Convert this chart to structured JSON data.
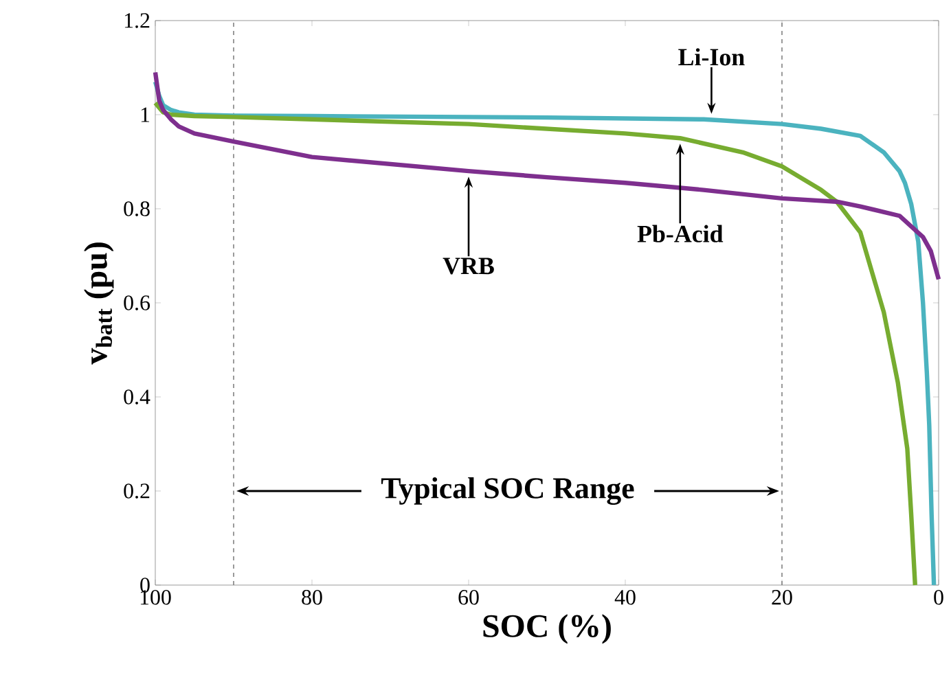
{
  "chart_data": {
    "type": "line",
    "xlabel": "SOC (%)",
    "ylabel": "v$_{batt}$ (pu)",
    "xlim": [
      100,
      0
    ],
    "ylim": [
      0,
      1.2
    ],
    "xticks": [
      100,
      80,
      60,
      40,
      20,
      0
    ],
    "yticks": [
      0,
      0.2,
      0.4,
      0.6,
      0.8,
      1,
      1.2
    ],
    "grid": false,
    "line_style": "solid",
    "marker": "none",
    "series": [
      {
        "color": "#4bb3bf",
        "x": [
          100,
          99.5,
          99,
          98,
          97,
          95,
          90,
          80,
          60,
          50,
          40,
          30,
          20,
          15,
          10,
          7,
          5,
          4.3,
          3.5,
          2.6,
          2,
          1.5,
          1.2,
          0.9,
          0.6
        ],
        "values": [
          1.07,
          1.04,
          1.02,
          1.01,
          1.005,
          1.0,
          0.998,
          0.997,
          0.995,
          0.994,
          0.992,
          0.99,
          0.98,
          0.97,
          0.955,
          0.92,
          0.88,
          0.855,
          0.81,
          0.73,
          0.6,
          0.45,
          0.34,
          0.15,
          0
        ]
      },
      {
        "color": "#77ac30",
        "x": [
          100,
          99,
          98,
          95,
          90,
          80,
          60,
          40,
          33,
          25,
          20,
          15,
          13,
          10,
          7,
          5.2,
          4,
          3.5,
          3
        ],
        "values": [
          1.025,
          1.005,
          1.0,
          0.997,
          0.995,
          0.99,
          0.98,
          0.96,
          0.95,
          0.92,
          0.89,
          0.84,
          0.815,
          0.75,
          0.58,
          0.43,
          0.29,
          0.15,
          0
        ]
      },
      {
        "color": "#7e2f8e",
        "x": [
          100,
          99.5,
          99,
          98,
          97,
          95,
          90,
          80,
          70,
          60,
          50,
          40,
          30,
          20,
          13,
          10,
          5,
          3,
          2,
          1,
          0.5,
          0
        ],
        "values": [
          1.09,
          1.03,
          1.01,
          0.99,
          0.975,
          0.96,
          0.943,
          0.91,
          0.895,
          0.88,
          0.867,
          0.855,
          0.84,
          0.822,
          0.815,
          0.805,
          0.785,
          0.755,
          0.74,
          0.71,
          0.68,
          0.65
        ]
      }
    ],
    "ref_lines": [
      {
        "axis": "x",
        "value": 90,
        "color": "#808080",
        "line_style": "dashed"
      },
      {
        "axis": "x",
        "value": 20,
        "color": "#808080",
        "line_style": "dashed"
      }
    ],
    "annotations": [
      {
        "text": "Li-Ion",
        "x": 29,
        "y": 0.99
      },
      {
        "text": "Pb-Acid",
        "x": 33,
        "y": 0.95
      },
      {
        "text": "VRB",
        "x": 60,
        "y": 0.88
      },
      {
        "text": "Typical SOC Range",
        "x": 90,
        "y": 0.2
      }
    ]
  }
}
